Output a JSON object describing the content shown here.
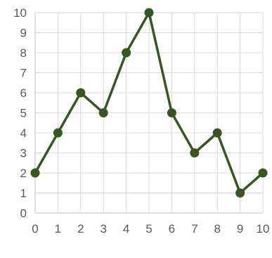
{
  "chart_data": {
    "type": "line",
    "title": "",
    "xlabel": "",
    "ylabel": "",
    "x": [
      0,
      1,
      2,
      3,
      4,
      5,
      6,
      7,
      8,
      9,
      10
    ],
    "series": [
      {
        "values": [
          2,
          4,
          6,
          5,
          8,
          10,
          5,
          3,
          4,
          1,
          2
        ],
        "color": "#375623"
      }
    ],
    "xlim": [
      0,
      10
    ],
    "ylim": [
      0,
      10
    ],
    "xticks": [
      "0",
      "1",
      "2",
      "3",
      "4",
      "5",
      "6",
      "7",
      "8",
      "9",
      "10"
    ],
    "yticks": [
      "0",
      "1",
      "2",
      "3",
      "4",
      "5",
      "6",
      "7",
      "8",
      "9",
      "10"
    ],
    "grid": true,
    "markers": "circle",
    "legend": "none",
    "gridColor": "#d9d9d9",
    "tickColor": "#595959"
  }
}
